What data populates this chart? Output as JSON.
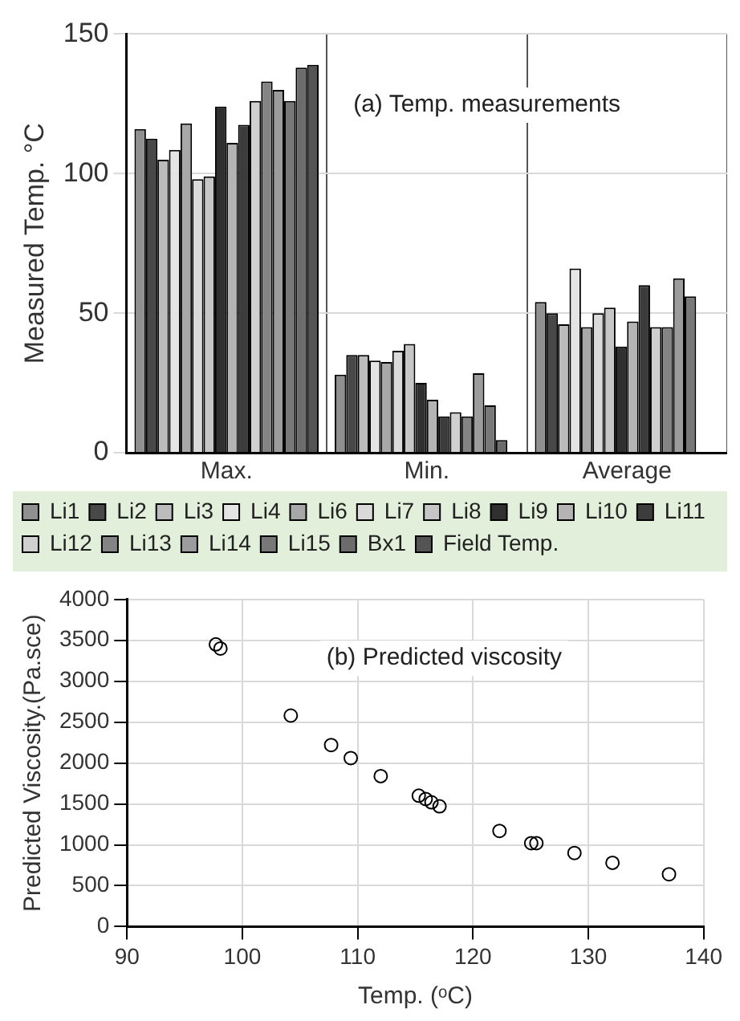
{
  "chart_data": [
    {
      "type": "bar",
      "title": "(a) Temp. measurements",
      "ylabel": "Measured Temp. °C",
      "categories": [
        "Max.",
        "Min.",
        "Average"
      ],
      "ylim": [
        0,
        150
      ],
      "yticks": [
        0,
        50,
        100,
        150
      ],
      "grid": true,
      "legend": "bottom",
      "series": [
        {
          "name": "Li1",
          "color": "#909090",
          "values": [
            116,
            28,
            54
          ]
        },
        {
          "name": "Li2",
          "color": "#484848",
          "values": [
            112.5,
            35,
            50
          ]
        },
        {
          "name": "Li3",
          "color": "#bcbcbc",
          "values": [
            105,
            35,
            46
          ]
        },
        {
          "name": "Li4",
          "color": "#e4e4e4",
          "values": [
            108.5,
            33,
            66
          ]
        },
        {
          "name": "Li6",
          "color": "#a8a8a8",
          "values": [
            118,
            32.5,
            45
          ]
        },
        {
          "name": "Li7",
          "color": "#dadada",
          "values": [
            98,
            36.5,
            50
          ]
        },
        {
          "name": "Li8",
          "color": "#c6c6c6",
          "values": [
            99,
            39,
            52
          ]
        },
        {
          "name": "Li9",
          "color": "#303030",
          "values": [
            124,
            25,
            38
          ]
        },
        {
          "name": "Li10",
          "color": "#b4b4b4",
          "values": [
            111,
            19,
            47
          ]
        },
        {
          "name": "Li11",
          "color": "#3c3c3c",
          "values": [
            117.5,
            13,
            60
          ]
        },
        {
          "name": "Li12",
          "color": "#d0d0d0",
          "values": [
            126,
            14.5,
            45
          ]
        },
        {
          "name": "Li13",
          "color": "#848484",
          "values": [
            133,
            13,
            45
          ]
        },
        {
          "name": "Li14",
          "color": "#9c9c9c",
          "values": [
            130,
            28.5,
            62.5
          ]
        },
        {
          "name": "Li15",
          "color": "#787878",
          "values": [
            126,
            17,
            56
          ]
        },
        {
          "name": "Bx1",
          "color": "#6c6c6c",
          "values": [
            138,
            4.5,
            null
          ]
        },
        {
          "name": "Field Temp.",
          "color": "#545454",
          "values": [
            139,
            null,
            null
          ]
        }
      ]
    },
    {
      "type": "scatter",
      "title": "(b) Predicted viscosity",
      "xlabel": "Temp. (ᵒC)",
      "ylabel": "Predicted Viscosity.(Pa.sce)",
      "xlim": [
        90,
        140
      ],
      "xticks": [
        90,
        100,
        110,
        120,
        130,
        140
      ],
      "ylim": [
        0,
        4000
      ],
      "yticks": [
        0,
        500,
        1000,
        1500,
        2000,
        2500,
        3000,
        3500,
        4000
      ],
      "grid": true,
      "marker": "circle",
      "series": [
        {
          "color": "#000000",
          "x": [
            97.7,
            98.1,
            104.2,
            107.7,
            109.4,
            112.0,
            115.3,
            115.9,
            116.4,
            117.1,
            122.3,
            125.05,
            125.5,
            128.8,
            132.1,
            137.0
          ],
          "values": [
            3450,
            3400,
            2580,
            2220,
            2060,
            1840,
            1600,
            1560,
            1520,
            1470,
            1170,
            1020,
            1020,
            900,
            780,
            640
          ]
        }
      ]
    }
  ]
}
